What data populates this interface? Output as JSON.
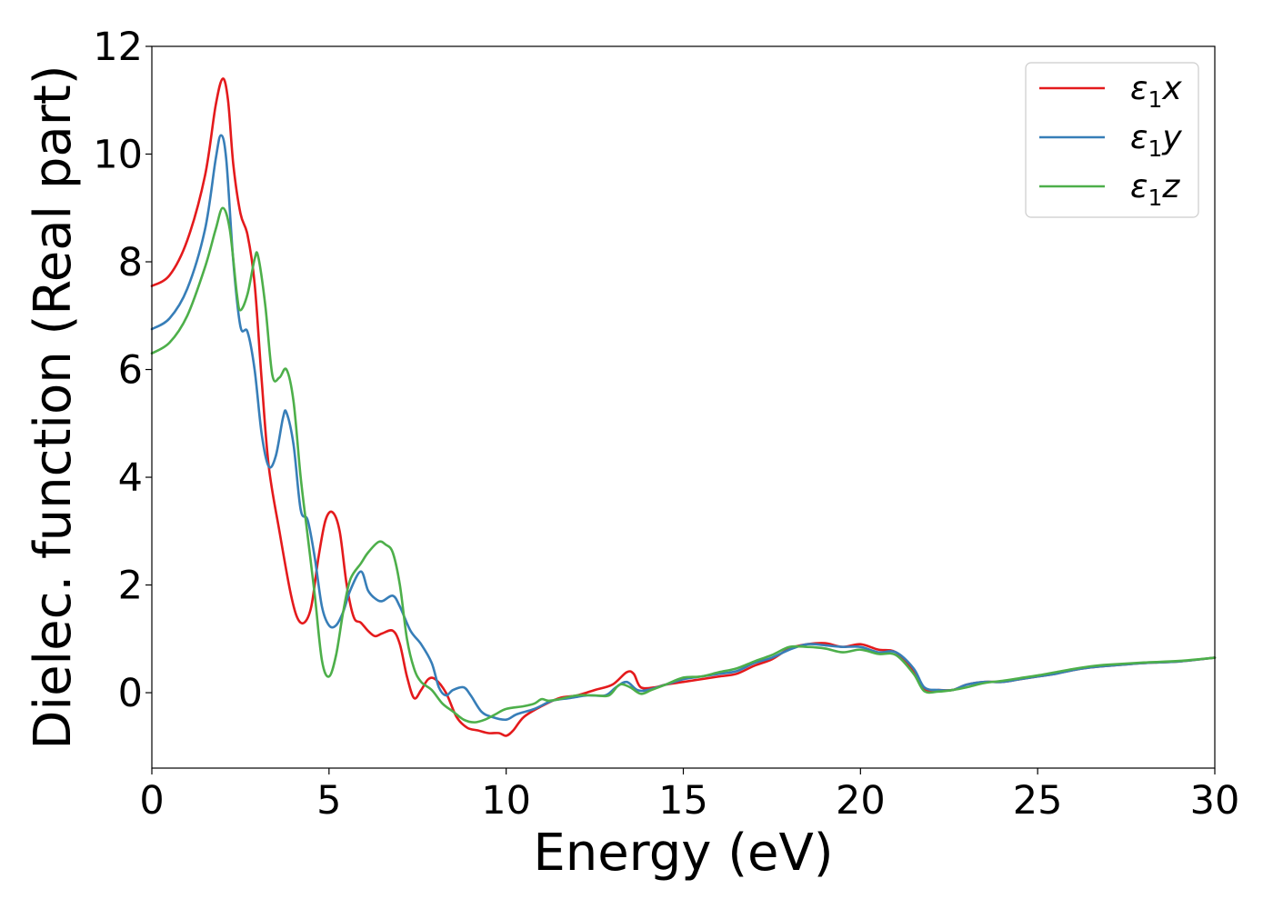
{
  "chart_data": {
    "type": "line",
    "title": "",
    "xlabel": "Energy (eV)",
    "ylabel": "Dielec. function (Real part)",
    "xlim": [
      0,
      30
    ],
    "ylim": [
      -1.4,
      12
    ],
    "xticks": [
      0,
      5,
      10,
      15,
      20,
      25,
      30
    ],
    "yticks": [
      0,
      2,
      4,
      6,
      8,
      10,
      12
    ],
    "grid": false,
    "legend_position": "top-right",
    "series": [
      {
        "name": "ε₁x",
        "legend_base": "ε",
        "legend_sub": "1",
        "legend_var": "x",
        "color": "#e41a1c",
        "points": [
          [
            0,
            7.55
          ],
          [
            0.5,
            7.75
          ],
          [
            1.0,
            8.4
          ],
          [
            1.5,
            9.6
          ],
          [
            1.8,
            10.9
          ],
          [
            2.0,
            11.4
          ],
          [
            2.15,
            11.0
          ],
          [
            2.3,
            9.8
          ],
          [
            2.5,
            8.9
          ],
          [
            2.7,
            8.5
          ],
          [
            2.9,
            7.6
          ],
          [
            3.1,
            5.8
          ],
          [
            3.3,
            4.2
          ],
          [
            3.6,
            3.0
          ],
          [
            3.9,
            1.9
          ],
          [
            4.1,
            1.4
          ],
          [
            4.3,
            1.3
          ],
          [
            4.5,
            1.6
          ],
          [
            4.7,
            2.5
          ],
          [
            4.9,
            3.2
          ],
          [
            5.1,
            3.35
          ],
          [
            5.3,
            3.0
          ],
          [
            5.5,
            2.0
          ],
          [
            5.7,
            1.4
          ],
          [
            5.9,
            1.3
          ],
          [
            6.1,
            1.15
          ],
          [
            6.3,
            1.05
          ],
          [
            6.5,
            1.1
          ],
          [
            6.8,
            1.15
          ],
          [
            7.0,
            0.9
          ],
          [
            7.2,
            0.3
          ],
          [
            7.4,
            -0.1
          ],
          [
            7.6,
            0.05
          ],
          [
            7.8,
            0.25
          ],
          [
            8.0,
            0.25
          ],
          [
            8.3,
            0.0
          ],
          [
            8.6,
            -0.45
          ],
          [
            8.9,
            -0.65
          ],
          [
            9.2,
            -0.7
          ],
          [
            9.5,
            -0.75
          ],
          [
            9.8,
            -0.75
          ],
          [
            10.0,
            -0.8
          ],
          [
            10.2,
            -0.7
          ],
          [
            10.5,
            -0.45
          ],
          [
            11.0,
            -0.25
          ],
          [
            11.5,
            -0.1
          ],
          [
            12.0,
            -0.05
          ],
          [
            12.5,
            0.05
          ],
          [
            13.0,
            0.15
          ],
          [
            13.4,
            0.38
          ],
          [
            13.6,
            0.35
          ],
          [
            13.8,
            0.1
          ],
          [
            14.2,
            0.1
          ],
          [
            14.5,
            0.15
          ],
          [
            15.0,
            0.2
          ],
          [
            15.5,
            0.25
          ],
          [
            16.0,
            0.3
          ],
          [
            16.5,
            0.35
          ],
          [
            17.0,
            0.5
          ],
          [
            17.5,
            0.62
          ],
          [
            18.0,
            0.82
          ],
          [
            18.5,
            0.9
          ],
          [
            19.0,
            0.92
          ],
          [
            19.5,
            0.85
          ],
          [
            20.0,
            0.9
          ],
          [
            20.5,
            0.8
          ],
          [
            21.0,
            0.75
          ],
          [
            21.5,
            0.4
          ],
          [
            21.8,
            0.05
          ],
          [
            22.2,
            0.05
          ],
          [
            22.6,
            0.05
          ],
          [
            23.0,
            0.15
          ],
          [
            23.5,
            0.2
          ],
          [
            24.0,
            0.2
          ],
          [
            24.5,
            0.25
          ],
          [
            25.0,
            0.3
          ],
          [
            25.5,
            0.35
          ],
          [
            26.0,
            0.42
          ],
          [
            26.5,
            0.47
          ],
          [
            27.0,
            0.5
          ],
          [
            28.0,
            0.55
          ],
          [
            29.0,
            0.58
          ],
          [
            30.0,
            0.65
          ]
        ]
      },
      {
        "name": "ε₁y",
        "legend_base": "ε",
        "legend_sub": "1",
        "legend_var": "y",
        "color": "#377eb8",
        "points": [
          [
            0,
            6.75
          ],
          [
            0.5,
            6.95
          ],
          [
            1.0,
            7.5
          ],
          [
            1.5,
            8.6
          ],
          [
            1.8,
            9.9
          ],
          [
            1.95,
            10.35
          ],
          [
            2.1,
            9.9
          ],
          [
            2.3,
            8.0
          ],
          [
            2.5,
            6.8
          ],
          [
            2.7,
            6.7
          ],
          [
            2.9,
            6.0
          ],
          [
            3.1,
            4.8
          ],
          [
            3.3,
            4.2
          ],
          [
            3.5,
            4.4
          ],
          [
            3.7,
            5.1
          ],
          [
            3.8,
            5.2
          ],
          [
            4.0,
            4.6
          ],
          [
            4.2,
            3.4
          ],
          [
            4.4,
            3.2
          ],
          [
            4.6,
            2.5
          ],
          [
            4.8,
            1.6
          ],
          [
            5.0,
            1.25
          ],
          [
            5.2,
            1.25
          ],
          [
            5.4,
            1.5
          ],
          [
            5.6,
            1.9
          ],
          [
            5.9,
            2.25
          ],
          [
            6.1,
            1.9
          ],
          [
            6.3,
            1.75
          ],
          [
            6.5,
            1.7
          ],
          [
            6.8,
            1.8
          ],
          [
            7.0,
            1.6
          ],
          [
            7.3,
            1.15
          ],
          [
            7.6,
            0.9
          ],
          [
            7.9,
            0.55
          ],
          [
            8.1,
            0.1
          ],
          [
            8.3,
            -0.05
          ],
          [
            8.5,
            0.05
          ],
          [
            8.8,
            0.1
          ],
          [
            9.0,
            -0.05
          ],
          [
            9.3,
            -0.35
          ],
          [
            9.6,
            -0.45
          ],
          [
            10.0,
            -0.5
          ],
          [
            10.3,
            -0.4
          ],
          [
            10.8,
            -0.3
          ],
          [
            11.3,
            -0.15
          ],
          [
            11.8,
            -0.1
          ],
          [
            12.3,
            -0.05
          ],
          [
            12.8,
            -0.05
          ],
          [
            13.1,
            0.1
          ],
          [
            13.4,
            0.2
          ],
          [
            13.7,
            0.05
          ],
          [
            14.0,
            0.05
          ],
          [
            14.5,
            0.15
          ],
          [
            15.0,
            0.25
          ],
          [
            15.5,
            0.3
          ],
          [
            16.0,
            0.35
          ],
          [
            16.5,
            0.4
          ],
          [
            17.0,
            0.55
          ],
          [
            17.5,
            0.65
          ],
          [
            18.0,
            0.8
          ],
          [
            18.5,
            0.9
          ],
          [
            19.0,
            0.88
          ],
          [
            19.5,
            0.85
          ],
          [
            20.0,
            0.85
          ],
          [
            20.5,
            0.75
          ],
          [
            21.0,
            0.75
          ],
          [
            21.5,
            0.45
          ],
          [
            21.8,
            0.1
          ],
          [
            22.2,
            0.05
          ],
          [
            22.6,
            0.05
          ],
          [
            23.0,
            0.15
          ],
          [
            23.5,
            0.2
          ],
          [
            24.0,
            0.2
          ],
          [
            24.5,
            0.25
          ],
          [
            25.0,
            0.3
          ],
          [
            25.5,
            0.35
          ],
          [
            26.0,
            0.42
          ],
          [
            26.5,
            0.47
          ],
          [
            27.0,
            0.5
          ],
          [
            28.0,
            0.55
          ],
          [
            29.0,
            0.58
          ],
          [
            30.0,
            0.65
          ]
        ]
      },
      {
        "name": "ε₁z",
        "legend_base": "ε",
        "legend_sub": "1",
        "legend_var": "z",
        "color": "#4daf4a",
        "points": [
          [
            0,
            6.3
          ],
          [
            0.5,
            6.5
          ],
          [
            1.0,
            7.0
          ],
          [
            1.5,
            7.9
          ],
          [
            1.8,
            8.6
          ],
          [
            2.0,
            9.0
          ],
          [
            2.2,
            8.6
          ],
          [
            2.4,
            7.4
          ],
          [
            2.5,
            7.1
          ],
          [
            2.7,
            7.4
          ],
          [
            2.9,
            8.05
          ],
          [
            3.0,
            8.1
          ],
          [
            3.2,
            7.2
          ],
          [
            3.4,
            5.9
          ],
          [
            3.6,
            5.85
          ],
          [
            3.8,
            6.0
          ],
          [
            4.0,
            5.4
          ],
          [
            4.2,
            4.0
          ],
          [
            4.4,
            2.9
          ],
          [
            4.6,
            1.8
          ],
          [
            4.8,
            0.6
          ],
          [
            5.0,
            0.3
          ],
          [
            5.2,
            0.7
          ],
          [
            5.4,
            1.5
          ],
          [
            5.6,
            2.1
          ],
          [
            5.9,
            2.4
          ],
          [
            6.1,
            2.6
          ],
          [
            6.4,
            2.8
          ],
          [
            6.6,
            2.75
          ],
          [
            6.8,
            2.6
          ],
          [
            7.0,
            2.0
          ],
          [
            7.2,
            1.0
          ],
          [
            7.4,
            0.45
          ],
          [
            7.6,
            0.2
          ],
          [
            7.9,
            0.05
          ],
          [
            8.2,
            -0.2
          ],
          [
            8.5,
            -0.35
          ],
          [
            8.8,
            -0.5
          ],
          [
            9.1,
            -0.55
          ],
          [
            9.4,
            -0.5
          ],
          [
            9.7,
            -0.4
          ],
          [
            10.0,
            -0.3
          ],
          [
            10.5,
            -0.25
          ],
          [
            10.8,
            -0.2
          ],
          [
            11.0,
            -0.12
          ],
          [
            11.2,
            -0.15
          ],
          [
            11.5,
            -0.12
          ],
          [
            12.0,
            -0.05
          ],
          [
            12.5,
            -0.05
          ],
          [
            12.9,
            -0.05
          ],
          [
            13.2,
            0.15
          ],
          [
            13.5,
            0.1
          ],
          [
            13.8,
            -0.02
          ],
          [
            14.1,
            0.05
          ],
          [
            14.5,
            0.15
          ],
          [
            15.0,
            0.28
          ],
          [
            15.5,
            0.3
          ],
          [
            16.0,
            0.38
          ],
          [
            16.5,
            0.45
          ],
          [
            17.0,
            0.58
          ],
          [
            17.5,
            0.7
          ],
          [
            18.0,
            0.85
          ],
          [
            18.5,
            0.85
          ],
          [
            19.0,
            0.82
          ],
          [
            19.5,
            0.75
          ],
          [
            20.0,
            0.8
          ],
          [
            20.5,
            0.72
          ],
          [
            21.0,
            0.7
          ],
          [
            21.5,
            0.35
          ],
          [
            21.8,
            0.03
          ],
          [
            22.2,
            0.02
          ],
          [
            22.6,
            0.05
          ],
          [
            23.0,
            0.1
          ],
          [
            23.5,
            0.18
          ],
          [
            24.0,
            0.22
          ],
          [
            24.5,
            0.27
          ],
          [
            25.0,
            0.32
          ],
          [
            25.5,
            0.38
          ],
          [
            26.0,
            0.44
          ],
          [
            26.5,
            0.49
          ],
          [
            27.0,
            0.52
          ],
          [
            28.0,
            0.56
          ],
          [
            29.0,
            0.59
          ],
          [
            30.0,
            0.65
          ]
        ]
      }
    ]
  }
}
